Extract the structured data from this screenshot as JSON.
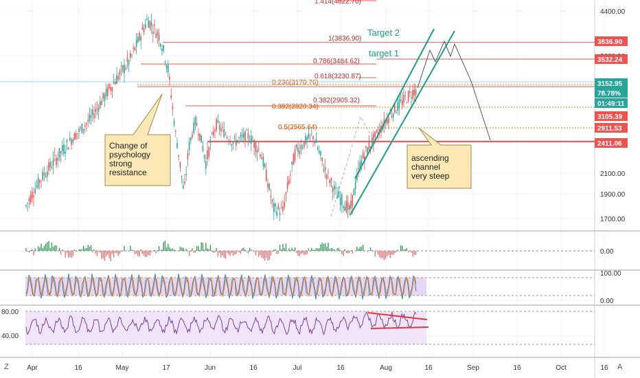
{
  "chart_data": [
    {
      "type": "candlestick",
      "price_axis": {
        "ticks": [
          "4400.00",
          "3600.00",
          "2400.00",
          "2100.00",
          "1900.00",
          "1700.00"
        ],
        "tick_values": [
          4400,
          3600,
          2400,
          2100,
          1900,
          1700
        ]
      },
      "time_axis": {
        "labels": [
          "Apr",
          "16",
          "May",
          "17",
          "Jun",
          "16",
          "Jul",
          "16",
          "Aug",
          "16",
          "Sep",
          "16",
          "Oct",
          "16"
        ]
      },
      "fibonacci_levels": [
        {
          "label": "1.414(4822.70)",
          "value": 4822.7
        },
        {
          "label": "1(3836.90)",
          "value": 3836.9
        },
        {
          "label": "0.786(3484.62)",
          "value": 3484.62
        },
        {
          "label": "0.618(3230.87)",
          "value": 3230.87
        },
        {
          "label": "0.236(3170.76)",
          "value": 3170.76
        },
        {
          "label": "0.382(2905.32)",
          "value": 2905.32
        },
        {
          "label": "0.382(2820.34)",
          "value": 2820.34
        },
        {
          "label": "0.5(2565.64)",
          "value": 2565.64
        }
      ],
      "price_tags": [
        {
          "text": "3836.90",
          "color": "#ef5350"
        },
        {
          "text": "3532.24",
          "color": "#ef5350"
        },
        {
          "text": "3152.95",
          "color": "#26a69a"
        },
        {
          "text": "78.78%",
          "color": "#26a69a"
        },
        {
          "text": "01:49:11",
          "color": "#26a69a"
        },
        {
          "text": "3105.39",
          "color": "#ef5350"
        },
        {
          "text": "2911.53",
          "color": "#ef5350"
        },
        {
          "text": "2411.06",
          "color": "#ef5350"
        }
      ],
      "annotations": [
        {
          "lines": [
            "Change of",
            "psychology",
            "strong",
            "resistance"
          ]
        },
        {
          "lines": [
            "ascending",
            "channel",
            "very steep"
          ]
        },
        {
          "text": "Target 2"
        },
        {
          "text": "target 1"
        }
      ],
      "support_level": 2411.06,
      "colors": {
        "up": "#26a69a",
        "down": "#ef5350",
        "channel": "#16a085",
        "fib": "#f57c00"
      }
    },
    {
      "type": "line",
      "name": "oscillator",
      "ticks": [
        "0.00"
      ]
    },
    {
      "type": "line",
      "name": "stochastic",
      "ticks": [
        "100.00",
        "0.00"
      ],
      "band": [
        20,
        80
      ]
    },
    {
      "type": "line",
      "name": "rsi",
      "ticks": [
        "80.00",
        "40.00"
      ],
      "band": [
        30,
        70
      ]
    }
  ],
  "corner_labels": {
    "left": "Z",
    "right": "A"
  }
}
